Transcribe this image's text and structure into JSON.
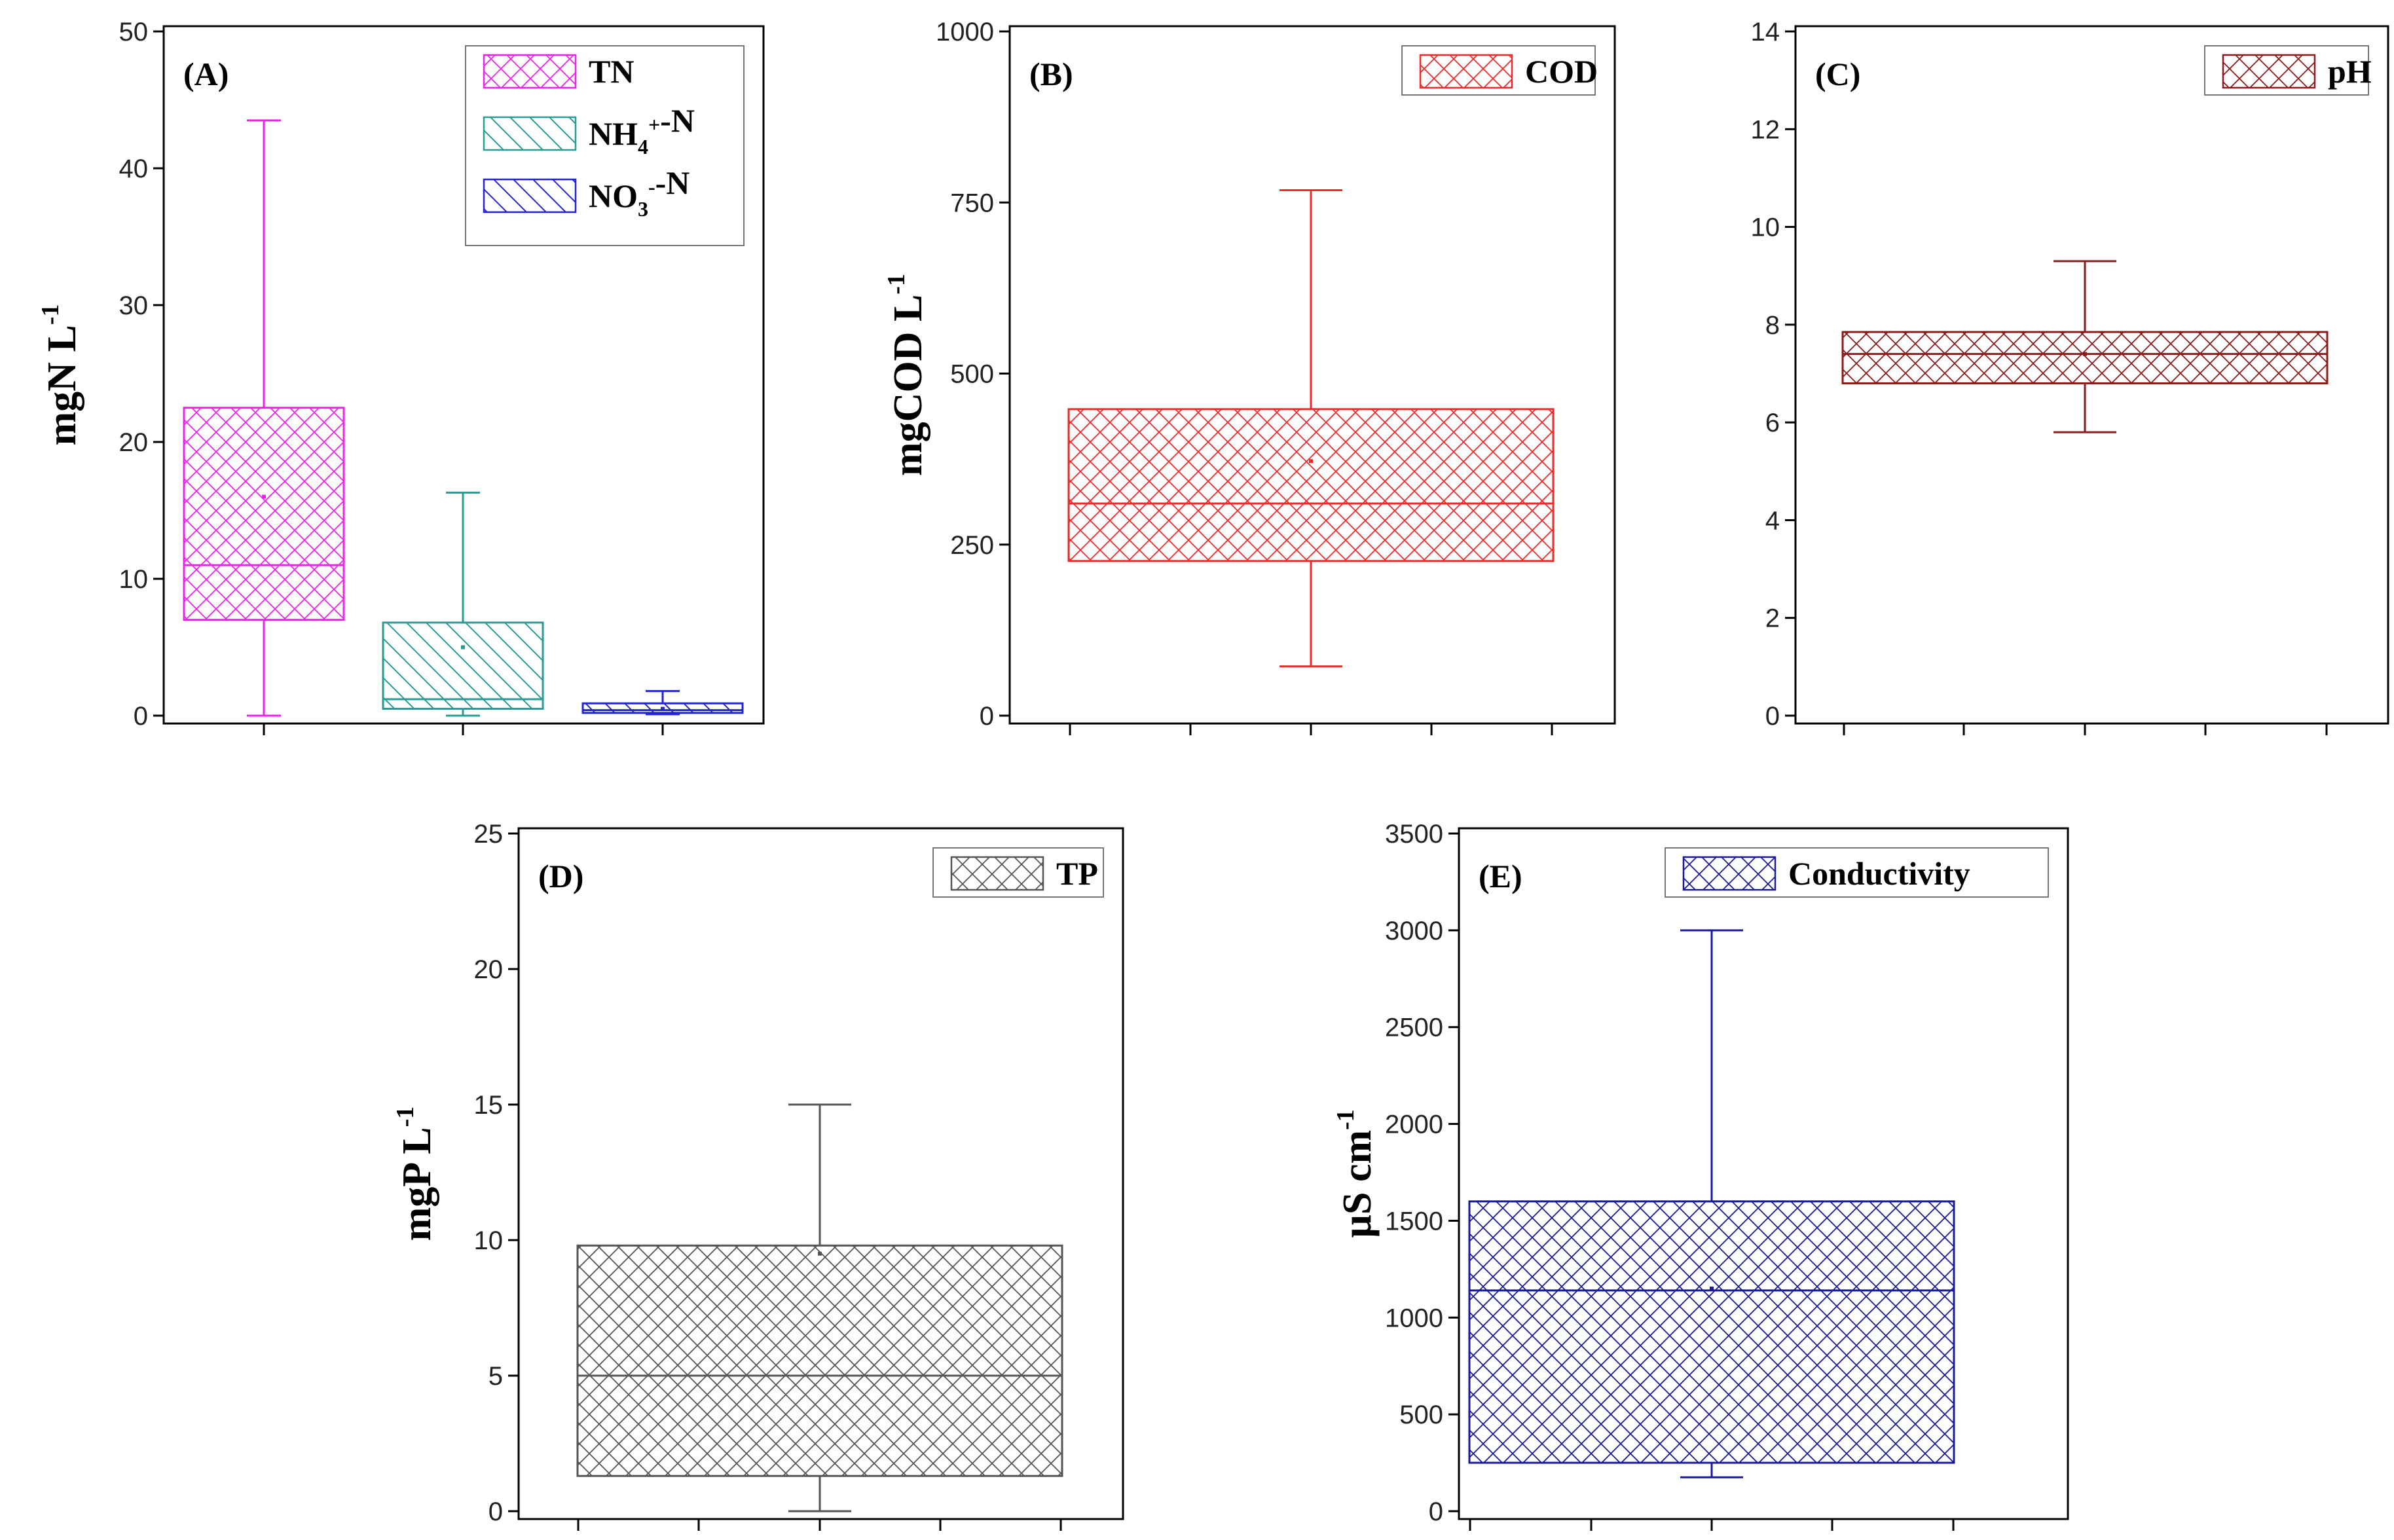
{
  "chart_data": [
    {
      "type": "box",
      "panel_label": "(A)",
      "ylabel": {
        "main": "mgN L",
        "sup": "-1"
      },
      "ylim": [
        0,
        50
      ],
      "yticks": [
        "0",
        "10",
        "20",
        "30",
        "40",
        "50"
      ],
      "legend_position": "top-right",
      "series": [
        {
          "name": "TN",
          "legend_parts": [
            {
              "t": "TN"
            }
          ],
          "color": "#ee22ee",
          "hatch": "cross",
          "min": 0,
          "q1": 7,
          "median": 11,
          "q3": 22.5,
          "max": 43.5,
          "mean": 16
        },
        {
          "name": "NH4+-N",
          "legend_parts": [
            {
              "t": "NH"
            },
            {
              "t": "4",
              "s": "sub"
            },
            {
              "t": "+",
              "s": "sup"
            },
            {
              "t": "-N"
            }
          ],
          "color": "#2a9a94",
          "hatch": "diag",
          "min": 0,
          "q1": 0.5,
          "median": 1.2,
          "q3": 6.8,
          "max": 16.3,
          "mean": 5
        },
        {
          "name": "NO3--N",
          "legend_parts": [
            {
              "t": "NO"
            },
            {
              "t": "3",
              "s": "sub"
            },
            {
              "t": "-",
              "s": "sup"
            },
            {
              "t": "-N"
            }
          ],
          "color": "#2222dd",
          "hatch": "diag",
          "min": 0.1,
          "q1": 0.2,
          "median": 0.4,
          "q3": 0.9,
          "max": 1.8,
          "mean": 0.5
        }
      ]
    },
    {
      "type": "box",
      "panel_label": "(B)",
      "ylabel": {
        "main": "mgCOD L",
        "sup": "-1"
      },
      "ylim": [
        0,
        1000
      ],
      "yticks": [
        "0",
        "250",
        "500",
        "750",
        "1000"
      ],
      "legend_position": "top-right",
      "series": [
        {
          "name": "COD",
          "legend_parts": [
            {
              "t": "COD"
            }
          ],
          "color": "#ee2a2a",
          "hatch": "cross",
          "min": 72,
          "q1": 226,
          "median": 310,
          "q3": 448,
          "max": 768,
          "mean": 372
        }
      ]
    },
    {
      "type": "box",
      "panel_label": "(C)",
      "ylabel": null,
      "ylim": [
        0,
        14
      ],
      "yticks": [
        "0",
        "2",
        "4",
        "6",
        "8",
        "10",
        "12",
        "14"
      ],
      "legend_position": "top-right",
      "series": [
        {
          "name": "pH",
          "legend_parts": [
            {
              "t": "pH"
            }
          ],
          "color": "#8b1a1a",
          "hatch": "cross",
          "min": 5.8,
          "q1": 6.8,
          "median": 7.4,
          "q3": 7.85,
          "max": 9.3,
          "mean": 7.4
        }
      ]
    },
    {
      "type": "box",
      "panel_label": "(D)",
      "ylabel": {
        "main": "mgP L",
        "sup": "-1"
      },
      "ylim": [
        0,
        25
      ],
      "yticks": [
        "0",
        "5",
        "10",
        "15",
        "20",
        "25"
      ],
      "legend_position": "top-right",
      "series": [
        {
          "name": "TP",
          "legend_parts": [
            {
              "t": "TP"
            }
          ],
          "color": "#555555",
          "hatch": "cross",
          "min": 0,
          "q1": 1.3,
          "median": 5,
          "q3": 9.8,
          "max": 15,
          "mean": 9.5
        }
      ]
    },
    {
      "type": "box",
      "panel_label": "(E)",
      "ylabel": {
        "main": "µS cm",
        "sup": "-1"
      },
      "ylim": [
        0,
        3500
      ],
      "yticks": [
        "0",
        "500",
        "1000",
        "1500",
        "2000",
        "2500",
        "3000",
        "3500"
      ],
      "legend_position": "top-right",
      "series": [
        {
          "name": "Conductivity",
          "legend_parts": [
            {
              "t": "Conductivity"
            }
          ],
          "color": "#1a1a99",
          "hatch": "cross",
          "min": 175,
          "q1": 250,
          "median": 1140,
          "q3": 1600,
          "max": 3000,
          "mean": 1150
        }
      ]
    }
  ]
}
